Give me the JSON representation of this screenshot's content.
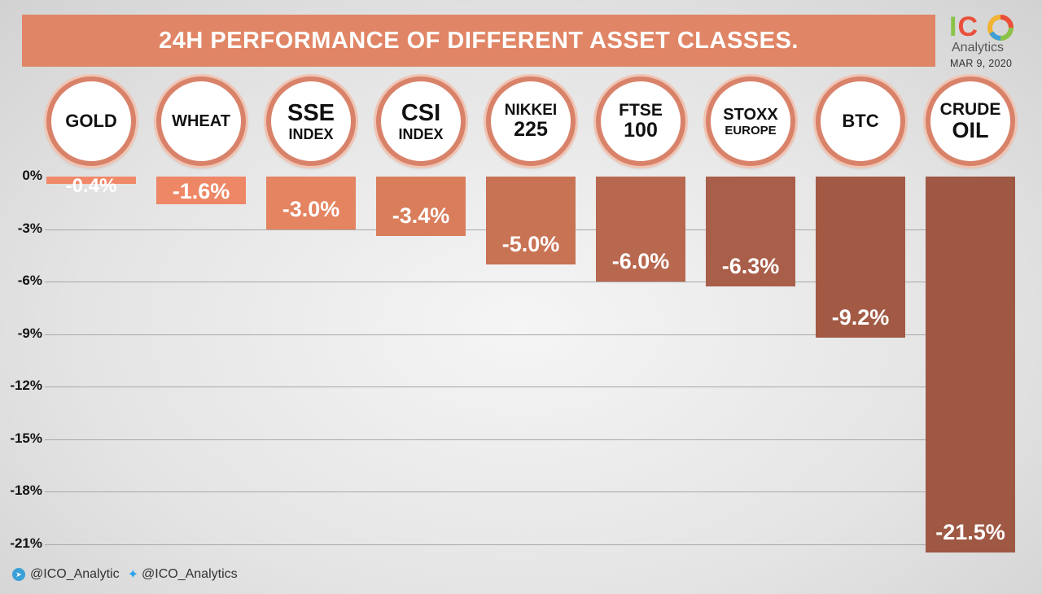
{
  "header": {
    "title": "24H PERFORMANCE OF DIFFERENT ASSET CLASSES."
  },
  "logo": {
    "brand_first": "I",
    "brand_second": "C",
    "brand_third": "O",
    "sub": "Analytics",
    "date": "MAR 9, 2020"
  },
  "footer": {
    "telegram_handle": "@ICO_Analytic",
    "twitter_handle": "@ICO_Analytics"
  },
  "assets": [
    {
      "line1": "GOLD",
      "line2": ""
    },
    {
      "line1": "WHEAT",
      "line2": ""
    },
    {
      "line1": "SSE",
      "line2": "INDEX"
    },
    {
      "line1": "CSI",
      "line2": "INDEX"
    },
    {
      "line1": "NIKKEI",
      "line2": "225"
    },
    {
      "line1": "FTSE",
      "line2": "100"
    },
    {
      "line1": "STOXX",
      "line2": "EUROPE"
    },
    {
      "line1": "BTC",
      "line2": ""
    },
    {
      "line1": "CRUDE",
      "line2": "OIL"
    }
  ],
  "colors": {
    "banner": "#e08565",
    "bar_gradient": [
      "#f0896a",
      "#ee8766",
      "#e48461",
      "#d97d5b",
      "#c97355",
      "#b8684f",
      "#a95e49",
      "#a35a45",
      "#9e5843"
    ],
    "circle_border": "#d9826a"
  },
  "chart_data": {
    "type": "bar",
    "categories": [
      "GOLD",
      "WHEAT",
      "SSE INDEX",
      "CSI INDEX",
      "NIKKEI 225",
      "FTSE 100",
      "STOXX EUROPE",
      "BTC",
      "CRUDE OIL"
    ],
    "values": [
      -0.4,
      -1.6,
      -3.0,
      -3.4,
      -5.0,
      -6.0,
      -6.3,
      -9.2,
      -21.5
    ],
    "data_labels": [
      "-0.4%",
      "-1.6%",
      "-3.0%",
      "-3.4%",
      "-5.0%",
      "-6.0%",
      "-6.3%",
      "-9.2%",
      "-21.5%"
    ],
    "title": "24H PERFORMANCE OF DIFFERENT ASSET CLASSES.",
    "xlabel": "",
    "ylabel": "",
    "ylim": [
      -22,
      0
    ],
    "yticks": [
      0,
      -3,
      -6,
      -9,
      -12,
      -15,
      -18,
      -21
    ],
    "ytick_labels": [
      "0%",
      "-3%",
      "-6%",
      "-9%",
      "-12%",
      "-15%",
      "-18%",
      "-21%"
    ],
    "grid": true,
    "legend": "none"
  }
}
